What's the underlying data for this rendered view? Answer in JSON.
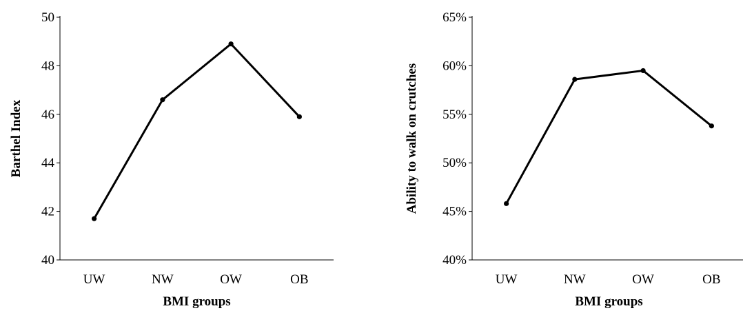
{
  "chart_data": [
    {
      "type": "line",
      "categories": [
        "UW",
        "NW",
        "OW",
        "OB"
      ],
      "values": [
        41.7,
        46.6,
        48.9,
        45.9
      ],
      "xlabel": "BMI groups",
      "ylabel": "Barthel Index",
      "ylim": [
        40,
        50
      ],
      "yticks": [
        40,
        42,
        44,
        46,
        48,
        50
      ],
      "ytick_labels": [
        "40",
        "42",
        "44",
        "46",
        "48",
        "50"
      ],
      "grid": false,
      "line_color": "#000000"
    },
    {
      "type": "line",
      "categories": [
        "UW",
        "NW",
        "OW",
        "OB"
      ],
      "values": [
        45.8,
        58.6,
        59.5,
        53.8
      ],
      "xlabel": "BMI groups",
      "ylabel": "Ability  to walk on crutches",
      "ylim": [
        40,
        65
      ],
      "yticks": [
        40,
        45,
        50,
        55,
        60,
        65
      ],
      "ytick_labels": [
        "40%",
        "45%",
        "50%",
        "55%",
        "60%",
        "65%"
      ],
      "grid": false,
      "line_color": "#000000"
    }
  ]
}
